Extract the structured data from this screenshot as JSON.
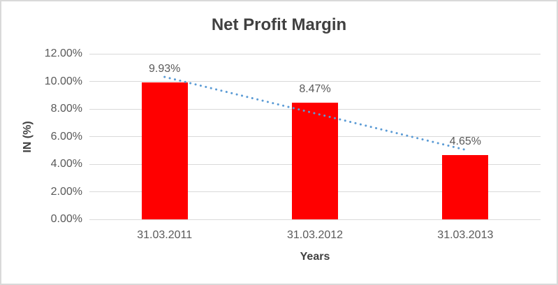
{
  "chart_data": {
    "type": "bar",
    "title": "Net Profit Margin",
    "xlabel": "Years",
    "ylabel": "IN (%)",
    "categories": [
      "31.03.2011",
      "31.03.2012",
      "31.03.2013"
    ],
    "values": [
      9.93,
      8.47,
      4.65
    ],
    "data_labels": [
      "9.93%",
      "8.47%",
      "4.65%"
    ],
    "ylim": [
      0,
      12
    ],
    "ytick_step": 2,
    "ytick_labels": [
      "0.00%",
      "2.00%",
      "4.00%",
      "6.00%",
      "8.00%",
      "10.00%",
      "12.00%"
    ],
    "grid": true,
    "legend": "none",
    "bar_color": "#ff0000",
    "trendline": {
      "type": "linear",
      "style": "dotted",
      "color": "#5b9bd5"
    },
    "gridline_color": "#d9d9d9",
    "frame_color": "#d9d9d9",
    "title_color": "#404040",
    "tick_color": "#595959"
  }
}
